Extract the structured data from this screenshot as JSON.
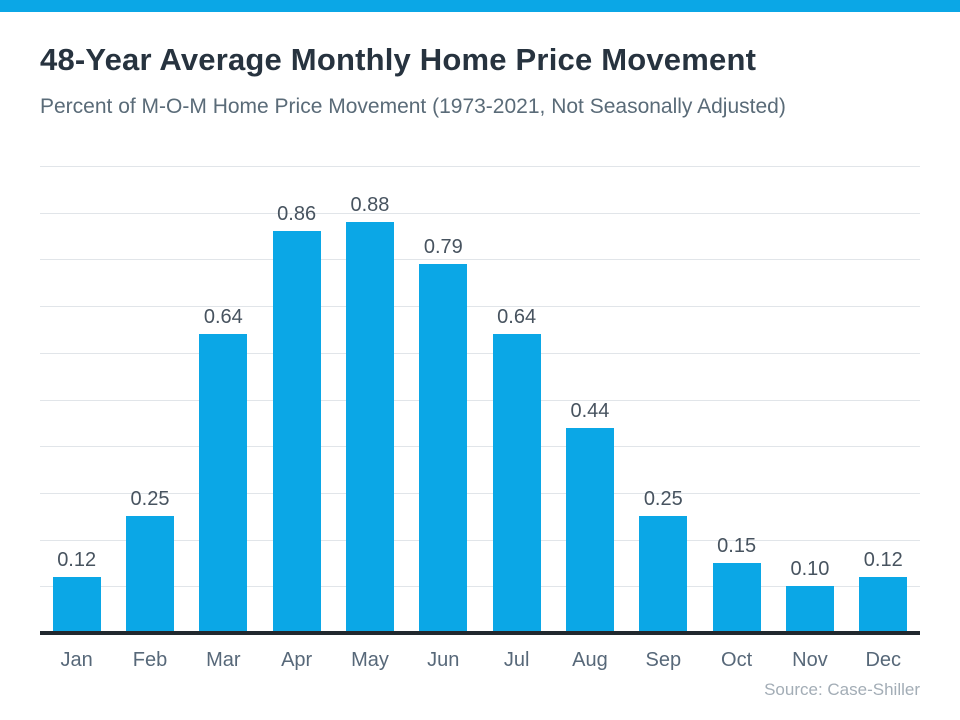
{
  "page": {
    "accent_color": "#0ba7e6",
    "background_color": "#ffffff"
  },
  "header": {
    "title": "48-Year Average Monthly Home Price Movement",
    "subtitle": "Percent of M-O-M Home Price Movement (1973-2021, Not Seasonally Adjusted)"
  },
  "footer": {
    "source": "Source: Case-Shiller"
  },
  "chart_data": {
    "type": "bar",
    "title": "48-Year Average Monthly Home Price Movement",
    "subtitle": "Percent of M-O-M Home Price Movement (1973-2021, Not Seasonally Adjusted)",
    "categories": [
      "Jan",
      "Feb",
      "Mar",
      "Apr",
      "May",
      "Jun",
      "Jul",
      "Aug",
      "Sep",
      "Oct",
      "Nov",
      "Dec"
    ],
    "values": [
      0.12,
      0.25,
      0.64,
      0.86,
      0.88,
      0.79,
      0.64,
      0.44,
      0.25,
      0.15,
      0.1,
      0.12
    ],
    "value_labels": [
      "0.12",
      "0.25",
      "0.64",
      "0.86",
      "0.88",
      "0.79",
      "0.64",
      "0.44",
      "0.25",
      "0.15",
      "0.10",
      "0.12"
    ],
    "xlabel": "",
    "ylabel": "",
    "ylim": [
      0,
      1.0
    ],
    "grid": "horizontal",
    "grid_step": 0.1,
    "legend": "none",
    "bar_color": "#0ba7e6",
    "grid_color": "#e1e5e9",
    "axis_color": "#21282e",
    "source": "Source: Case-Shiller"
  }
}
